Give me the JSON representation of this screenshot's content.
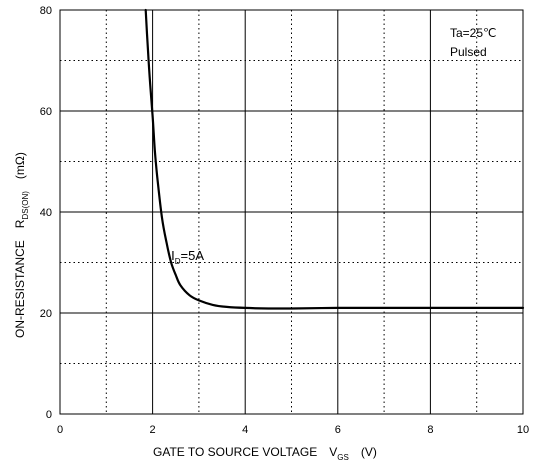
{
  "chart_data": {
    "type": "line",
    "xlabel": "GATE TO SOURCE VOLTAGE",
    "xlabel_symbol": "V",
    "xlabel_symbol_sub": "GS",
    "xlabel_unit": "(V)",
    "ylabel": "ON-RESISTANCE",
    "ylabel_symbol": "R",
    "ylabel_symbol_sub": "DS(ON)",
    "ylabel_unit": "(mΩ)",
    "xlim": [
      0,
      10
    ],
    "ylim": [
      0,
      80
    ],
    "x_ticks": [
      0,
      2,
      4,
      6,
      8,
      10
    ],
    "y_ticks": [
      0,
      20,
      40,
      60,
      80
    ],
    "x_tick_labels": [
      "0",
      "2",
      "4",
      "6",
      "8",
      "10"
    ],
    "y_tick_labels": [
      "0",
      "20",
      "40",
      "60",
      "80"
    ],
    "grid": true,
    "conditions": [
      "Ta=25℃",
      "Pulsed"
    ],
    "series": [
      {
        "label": "I",
        "label_sub": "D",
        "label_rest": "=5A",
        "label_at": [
          2.4,
          30.5
        ],
        "x": [
          1.85,
          1.9,
          1.95,
          2.0,
          2.05,
          2.1,
          2.2,
          2.3,
          2.4,
          2.5,
          2.6,
          2.8,
          3.0,
          3.3,
          3.6,
          4.0,
          4.5,
          5.0,
          6.0,
          7.0,
          8.0,
          9.0,
          10.0
        ],
        "y": [
          80,
          72,
          65,
          59,
          52,
          47,
          39,
          34,
          30,
          27.5,
          25.5,
          23.5,
          22.5,
          21.6,
          21.2,
          21.0,
          20.9,
          20.9,
          21.0,
          21.0,
          21.0,
          21.0,
          21.0
        ]
      }
    ]
  }
}
